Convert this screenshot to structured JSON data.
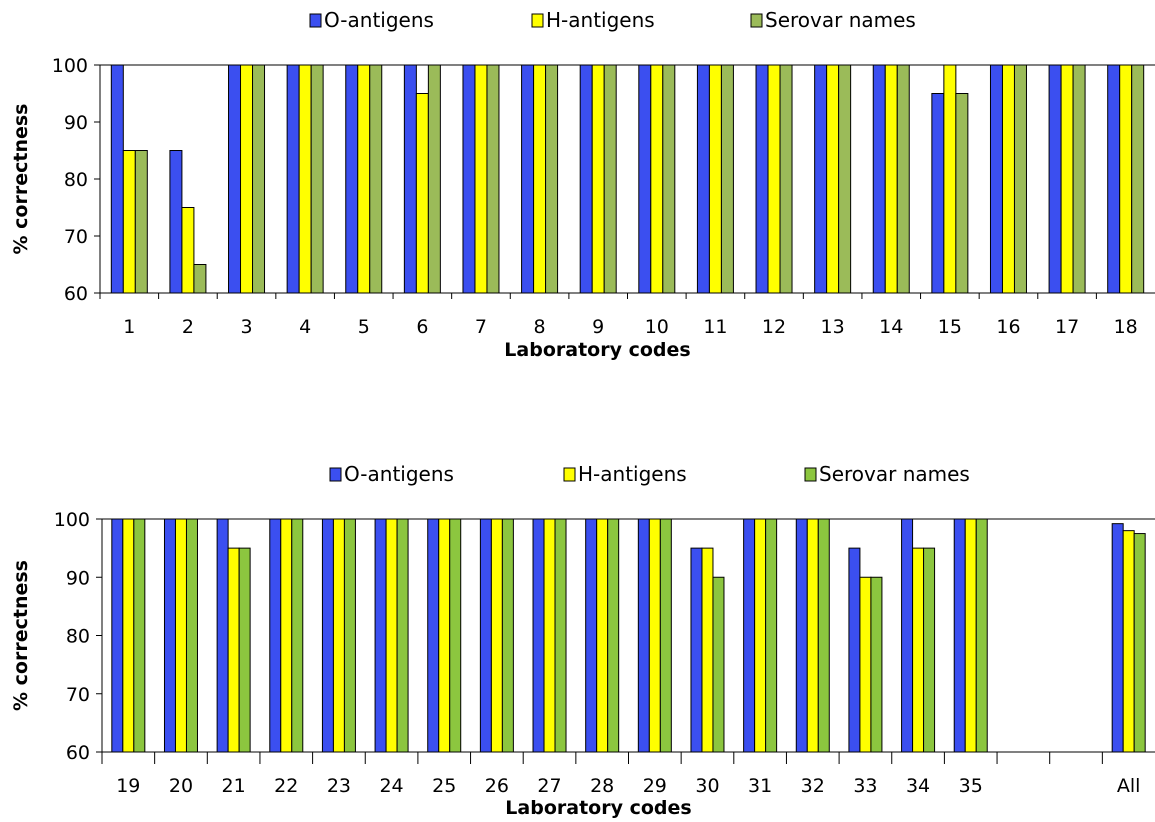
{
  "chart_data": [
    {
      "type": "bar",
      "title": "",
      "xlabel": "Laboratory codes",
      "ylabel": "% correctness",
      "ylim": [
        60,
        100
      ],
      "yticks": [
        60,
        70,
        80,
        90,
        100
      ],
      "legend": "top",
      "categories": [
        "1",
        "2",
        "3",
        "4",
        "5",
        "6",
        "7",
        "8",
        "9",
        "10",
        "11",
        "12",
        "13",
        "14",
        "15",
        "16",
        "17",
        "18"
      ],
      "series": [
        {
          "name": "O-antigens",
          "color": "#3b4ff0",
          "values": [
            100,
            85,
            100,
            100,
            100,
            100,
            100,
            100,
            100,
            100,
            100,
            100,
            100,
            100,
            95,
            100,
            100,
            100
          ]
        },
        {
          "name": "H-antigens",
          "color": "#ffff00",
          "values": [
            85,
            75,
            100,
            100,
            100,
            95,
            100,
            100,
            100,
            100,
            100,
            100,
            100,
            100,
            100,
            100,
            100,
            100
          ]
        },
        {
          "name": "Serovar names",
          "color": "#9bbb59",
          "values": [
            85,
            65,
            100,
            100,
            100,
            100,
            100,
            100,
            100,
            100,
            100,
            100,
            100,
            100,
            95,
            100,
            100,
            100
          ]
        }
      ]
    },
    {
      "type": "bar",
      "title": "",
      "xlabel": "Laboratory codes",
      "ylabel": "% correctness",
      "ylim": [
        60,
        100
      ],
      "yticks": [
        60,
        70,
        80,
        90,
        100
      ],
      "legend": "top",
      "categories": [
        "19",
        "20",
        "21",
        "22",
        "23",
        "24",
        "25",
        "26",
        "27",
        "28",
        "29",
        "30",
        "31",
        "32",
        "33",
        "34",
        "35",
        "",
        "",
        "All"
      ],
      "series": [
        {
          "name": "O-antigens",
          "color": "#3b4ff0",
          "values": [
            100,
            100,
            100,
            100,
            100,
            100,
            100,
            100,
            100,
            100,
            100,
            95,
            100,
            100,
            95,
            100,
            100,
            null,
            null,
            99.2
          ]
        },
        {
          "name": "H-antigens",
          "color": "#ffff00",
          "values": [
            100,
            100,
            95,
            100,
            100,
            100,
            100,
            100,
            100,
            100,
            100,
            95,
            100,
            100,
            90,
            95,
            100,
            null,
            null,
            98
          ]
        },
        {
          "name": "Serovar names",
          "color": "#8cc63f",
          "values": [
            100,
            100,
            95,
            100,
            100,
            100,
            100,
            100,
            100,
            100,
            100,
            90,
            100,
            100,
            90,
            95,
            100,
            null,
            null,
            97.5
          ]
        }
      ]
    }
  ]
}
